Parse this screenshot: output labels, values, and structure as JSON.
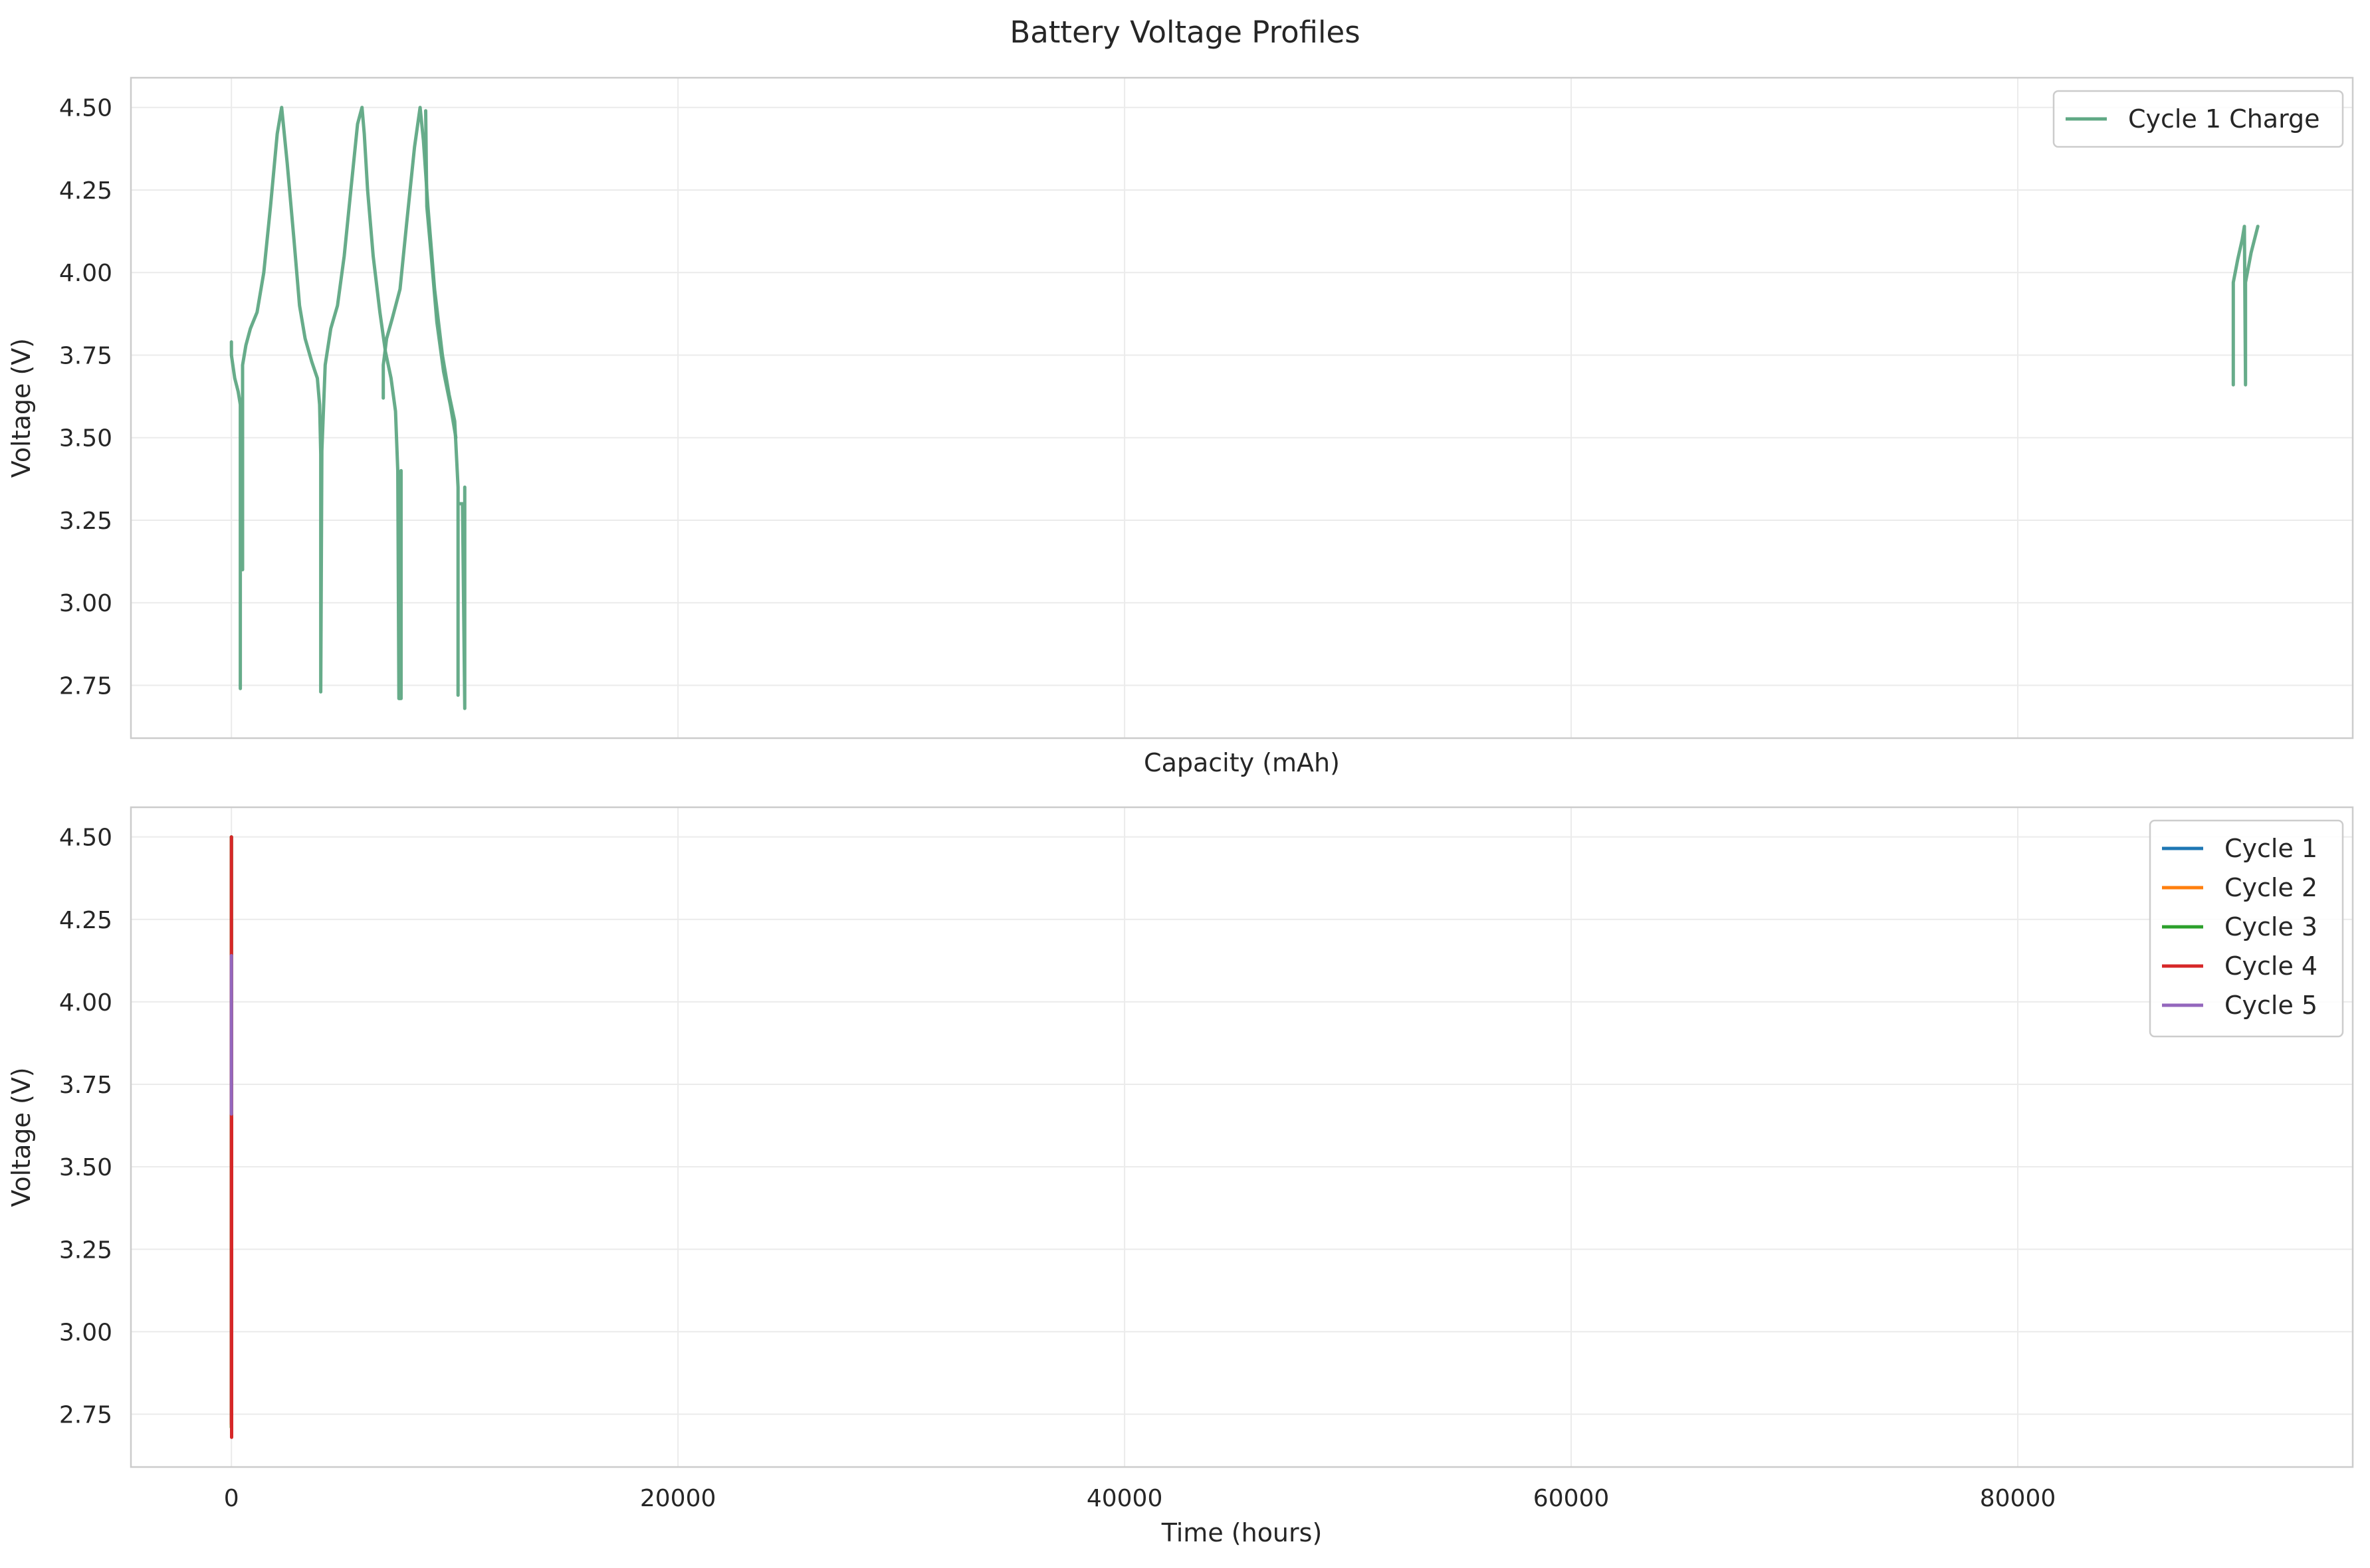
{
  "chart_data": {
    "type": "line",
    "title": "Battery Voltage Profiles",
    "xlim": [
      -4500,
      95000
    ],
    "x_ticks": [
      0,
      20000,
      40000,
      60000,
      80000
    ],
    "ylim": [
      2.59,
      4.59
    ],
    "y_ticks": [
      2.75,
      3.0,
      3.25,
      3.5,
      3.75,
      4.0,
      4.25,
      4.5
    ],
    "y_tick_labels": [
      "2.75",
      "3.00",
      "3.25",
      "3.50",
      "3.75",
      "4.00",
      "4.25",
      "4.50"
    ],
    "grid": true,
    "sharex": true,
    "panels": [
      {
        "xlabel": "Capacity (mAh)",
        "ylabel": "Voltage (V)",
        "legend_placement": "upper-right",
        "show_x_ticklabels": false,
        "series": [
          {
            "name": "Cycle 1 Charge",
            "color": "#5fa884",
            "segments": [
              [
                [
                  0,
                  3.79
                ],
                [
                  0,
                  3.75
                ],
                [
                  150,
                  3.68
                ],
                [
                  300,
                  3.64
                ],
                [
                  400,
                  3.6
                ],
                [
                  400,
                  2.74
                ],
                [
                  400,
                  3.4
                ],
                [
                  500,
                  3.1
                ],
                [
                  500,
                  3.72
                ],
                [
                  650,
                  3.78
                ],
                [
                  850,
                  3.83
                ],
                [
                  1150,
                  3.88
                ],
                [
                  1450,
                  4.0
                ],
                [
                  1750,
                  4.2
                ],
                [
                  2050,
                  4.42
                ],
                [
                  2250,
                  4.5
                ],
                [
                  2500,
                  4.33
                ],
                [
                  2800,
                  4.1
                ],
                [
                  3050,
                  3.9
                ],
                [
                  3300,
                  3.8
                ],
                [
                  3600,
                  3.73
                ],
                [
                  3850,
                  3.68
                ],
                [
                  3950,
                  3.6
                ],
                [
                  4000,
                  3.45
                ],
                [
                  4000,
                  2.73
                ],
                [
                  4050,
                  3.46
                ],
                [
                  4200,
                  3.72
                ],
                [
                  4450,
                  3.83
                ],
                [
                  4750,
                  3.9
                ],
                [
                  5050,
                  4.05
                ],
                [
                  5350,
                  4.25
                ],
                [
                  5650,
                  4.45
                ],
                [
                  5850,
                  4.5
                ],
                [
                  5950,
                  4.42
                ],
                [
                  6100,
                  4.25
                ],
                [
                  6350,
                  4.05
                ],
                [
                  6650,
                  3.88
                ],
                [
                  6900,
                  3.76
                ],
                [
                  7150,
                  3.68
                ],
                [
                  7350,
                  3.58
                ],
                [
                  7450,
                  3.4
                ],
                [
                  7500,
                  2.71
                ],
                [
                  7600,
                  2.71
                ],
                [
                  7600,
                  3.4
                ]
              ],
              [
                [
                  6800,
                  3.62
                ],
                [
                  6800,
                  3.72
                ],
                [
                  6950,
                  3.8
                ],
                [
                  7200,
                  3.86
                ],
                [
                  7550,
                  3.95
                ],
                [
                  7850,
                  4.15
                ],
                [
                  8200,
                  4.38
                ],
                [
                  8450,
                  4.5
                ],
                [
                  8600,
                  4.4
                ],
                [
                  8800,
                  4.2
                ],
                [
                  9100,
                  3.95
                ],
                [
                  9450,
                  3.75
                ],
                [
                  9750,
                  3.63
                ],
                [
                  10000,
                  3.55
                ],
                [
                  10150,
                  3.35
                ],
                [
                  10150,
                  2.72
                ],
                [
                  10150,
                  3.3
                ],
                [
                  10350,
                  3.3
                ],
                [
                  10450,
                  2.68
                ],
                [
                  10450,
                  3.35
                ]
              ],
              [
                [
                  8700,
                  4.49
                ],
                [
                  8750,
                  4.2
                ],
                [
                  8950,
                  4.05
                ],
                [
                  9200,
                  3.85
                ],
                [
                  9500,
                  3.7
                ],
                [
                  9800,
                  3.6
                ],
                [
                  10050,
                  3.5
                ]
              ],
              [
                [
                  89650,
                  3.66
                ],
                [
                  89650,
                  3.97
                ],
                [
                  89850,
                  4.04
                ],
                [
                  90050,
                  4.1
                ],
                [
                  90150,
                  4.14
                ],
                [
                  90200,
                  3.66
                ],
                [
                  90200,
                  3.97
                ],
                [
                  90450,
                  4.06
                ],
                [
                  90750,
                  4.14
                ]
              ]
            ]
          }
        ]
      },
      {
        "xlabel": "Time (hours)",
        "ylabel": "Voltage (V)",
        "legend_placement": "upper-right",
        "show_x_ticklabels": true,
        "series": [
          {
            "name": "Cycle 1",
            "color": "#1f77b4",
            "segments": [
              [
                [
                  0,
                  3.79
                ],
                [
                  0,
                  2.74
                ],
                [
                  0,
                  4.5
                ],
                [
                  0,
                  2.73
                ]
              ]
            ]
          },
          {
            "name": "Cycle 2",
            "color": "#ff7f0e",
            "segments": [
              [
                [
                  0,
                  2.73
                ],
                [
                  0,
                  4.5
                ],
                [
                  0,
                  2.71
                ]
              ]
            ]
          },
          {
            "name": "Cycle 3",
            "color": "#2ca02c",
            "segments": [
              [
                [
                  0,
                  2.71
                ],
                [
                  0,
                  4.5
                ],
                [
                  0,
                  2.72
                ]
              ]
            ]
          },
          {
            "name": "Cycle 4",
            "color": "#d62728",
            "segments": [
              [
                [
                  0,
                  2.72
                ],
                [
                  0,
                  4.5
                ],
                [
                  10,
                  2.68
                ],
                [
                  10,
                  3.65
                ]
              ]
            ]
          },
          {
            "name": "Cycle 5",
            "color": "#9467bd",
            "segments": [
              [
                [
                  0,
                  3.66
                ],
                [
                  0,
                  4.14
                ]
              ]
            ]
          }
        ]
      }
    ]
  }
}
